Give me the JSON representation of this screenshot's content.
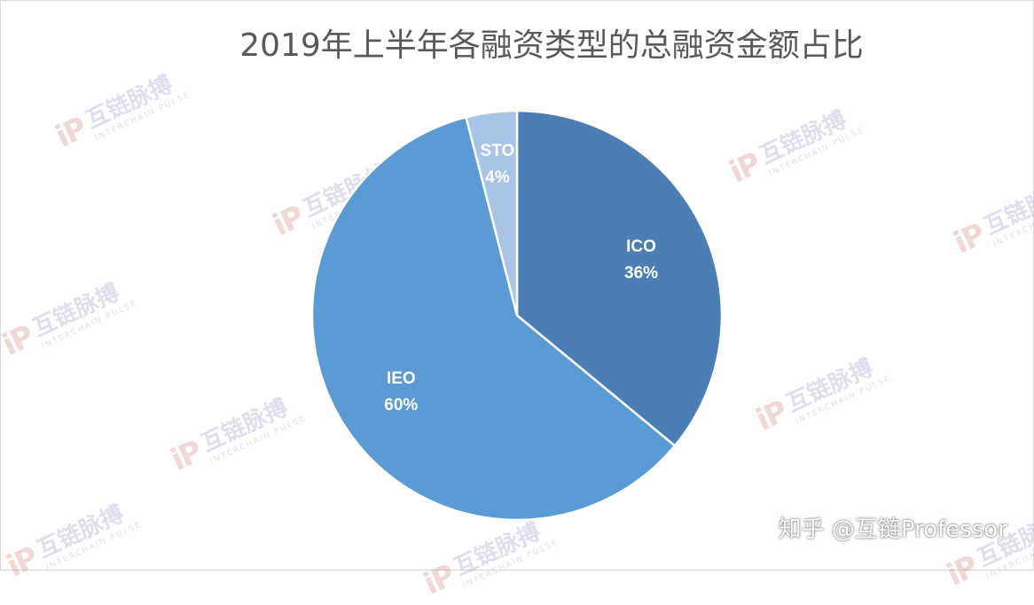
{
  "chart_data": {
    "type": "pie",
    "title": "2019年上半年各融资类型的总融资金额占比",
    "slices": [
      {
        "label": "ICO",
        "value": 36,
        "percent_label": "36%",
        "color": "#4a7eb4"
      },
      {
        "label": "IEO",
        "value": 60,
        "percent_label": "60%",
        "color": "#5b9bd5"
      },
      {
        "label": "STO",
        "value": 4,
        "percent_label": "4%",
        "color": "#a9c4e6"
      }
    ]
  },
  "watermark": {
    "logo": "iP",
    "text_zh": "互链脉搏",
    "text_en": "INTERCHAIN PULSE"
  },
  "credit": "知乎 @互链Professor"
}
